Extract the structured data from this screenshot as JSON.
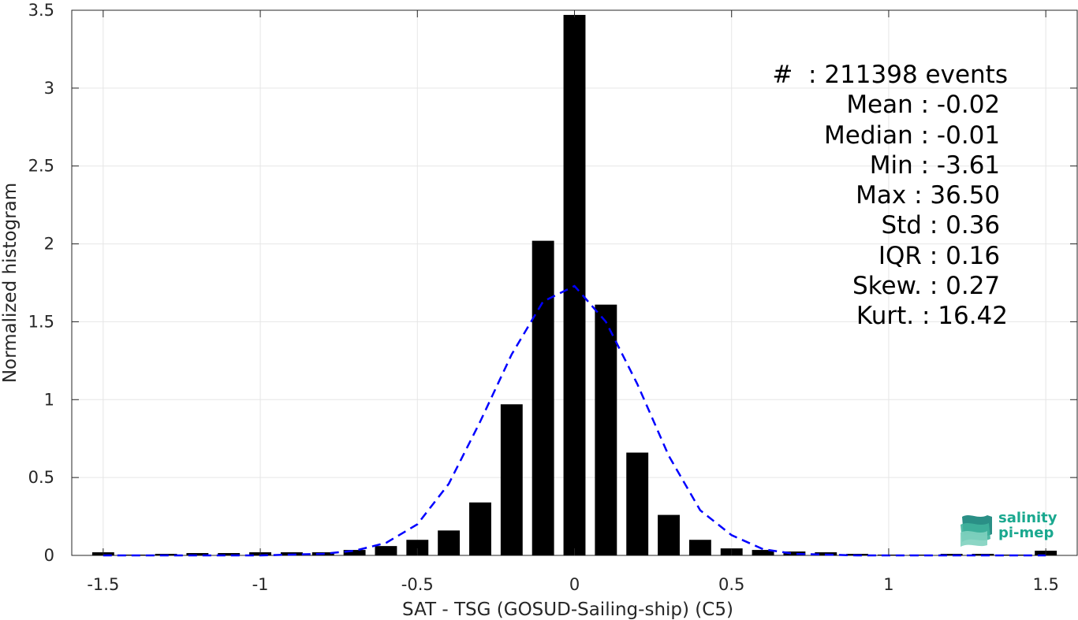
{
  "chart_data": {
    "type": "bar",
    "xlabel": "SAT - TSG (GOSUD-Sailing-ship) (C5)",
    "ylabel": "Normalized histogram",
    "xlim": [
      -1.6,
      1.6
    ],
    "ylim": [
      0,
      3.5
    ],
    "xticks": [
      -1.5,
      -1,
      -0.5,
      0,
      0.5,
      1,
      1.5
    ],
    "xtick_labels": [
      "-1.5",
      "-1",
      "-0.5",
      "0",
      "0.5",
      "1",
      "1.5"
    ],
    "yticks": [
      0,
      0.5,
      1,
      1.5,
      2,
      2.5,
      3,
      3.5
    ],
    "ytick_labels": [
      "0",
      "0.5",
      "1",
      "1.5",
      "2",
      "2.5",
      "3",
      "3.5"
    ],
    "grid": true,
    "bar_width": 0.07,
    "bars": {
      "x": [
        -1.5,
        -1.4,
        -1.3,
        -1.2,
        -1.1,
        -1.0,
        -0.9,
        -0.8,
        -0.7,
        -0.6,
        -0.5,
        -0.4,
        -0.3,
        -0.2,
        -0.1,
        0.0,
        0.1,
        0.2,
        0.3,
        0.4,
        0.5,
        0.6,
        0.7,
        0.8,
        0.9,
        1.0,
        1.1,
        1.2,
        1.3,
        1.4,
        1.5
      ],
      "values": [
        0.02,
        0.005,
        0.01,
        0.015,
        0.015,
        0.02,
        0.02,
        0.02,
        0.035,
        0.06,
        0.1,
        0.16,
        0.34,
        0.97,
        2.02,
        3.47,
        1.61,
        0.66,
        0.26,
        0.1,
        0.045,
        0.035,
        0.025,
        0.02,
        0.01,
        0.005,
        0.005,
        0.01,
        0.01,
        0.005,
        0.03
      ]
    },
    "fit_curve": {
      "style": "dashed",
      "color": "#0000ff",
      "x": [
        -1.5,
        -1.4,
        -1.3,
        -1.2,
        -1.1,
        -1.0,
        -0.9,
        -0.8,
        -0.7,
        -0.6,
        -0.5,
        -0.4,
        -0.3,
        -0.2,
        -0.1,
        0.0,
        0.1,
        0.2,
        0.3,
        0.4,
        0.5,
        0.6,
        0.7,
        0.8,
        0.9,
        1.0,
        1.1,
        1.2,
        1.3,
        1.4,
        1.5
      ],
      "y": [
        0.0,
        0.0,
        0.0,
        0.0,
        0.0,
        0.0,
        0.005,
        0.01,
        0.03,
        0.08,
        0.2,
        0.46,
        0.86,
        1.29,
        1.63,
        1.73,
        1.5,
        1.1,
        0.64,
        0.29,
        0.13,
        0.04,
        0.01,
        0.005,
        0.0,
        0.0,
        0.0,
        0.0,
        0.0,
        0.0,
        0.0
      ]
    },
    "bar_color": "#000000"
  },
  "stats": [
    "#  : 211398 events",
    "Mean : -0.02 ",
    "Median : -0.01 ",
    "Min : -3.61 ",
    "Max : 36.50 ",
    "Std : 0.36 ",
    "IQR : 0.16 ",
    "Skew. : 0.27 ",
    "Kurt. : 16.42"
  ],
  "logo": {
    "line1": "salinity",
    "line2": "pi-mep",
    "color": "#1aa88f"
  }
}
